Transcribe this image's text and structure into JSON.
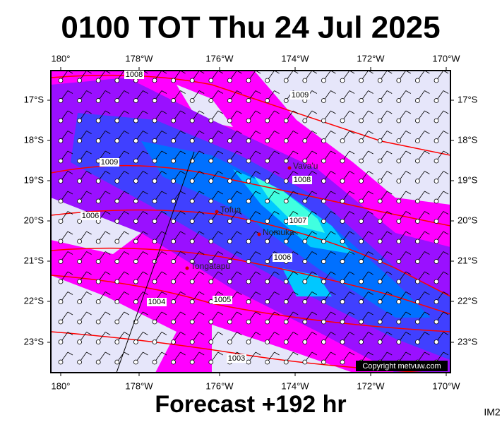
{
  "header": {
    "title": "0100 TOT Thu 24 Jul 2025"
  },
  "footer": {
    "text": "Forecast +192 hr",
    "code": "IM2"
  },
  "map": {
    "lon_labels": [
      "180°",
      "178°W",
      "176°W",
      "174°W",
      "172°W",
      "170°W"
    ],
    "lat_labels": [
      "17°S",
      "18°S",
      "19°S",
      "20°S",
      "21°S",
      "22°S",
      "23°S"
    ],
    "places": [
      "Vava'u",
      "Tofua",
      "Nomuka",
      "Tongatapu"
    ],
    "isobar_labels": [
      "1008",
      "1009",
      "1009",
      "1008",
      "1006",
      "1007",
      "1006",
      "1004",
      "1005",
      "1003"
    ],
    "copyright": "Copyright metvuw.com"
  }
}
